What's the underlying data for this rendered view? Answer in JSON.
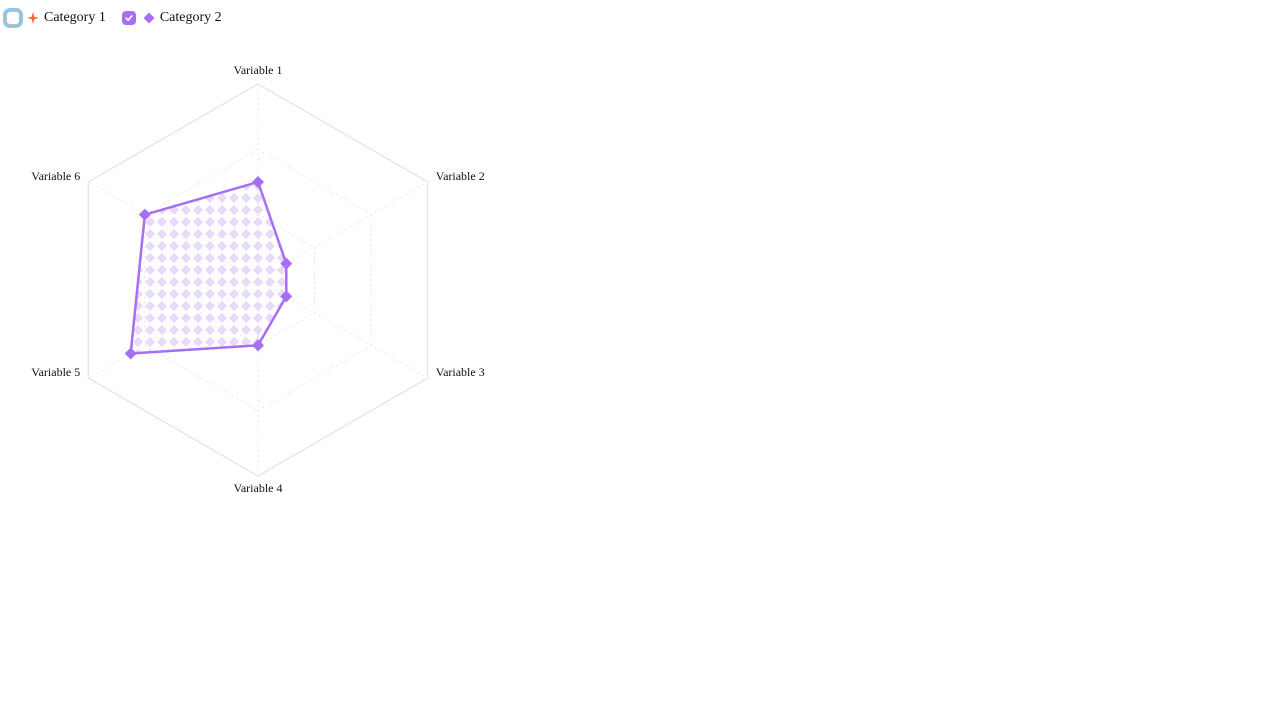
{
  "legend": {
    "items": [
      {
        "label": "Category 1",
        "checked": false,
        "marker_icon": "sparkle-icon",
        "color": "#f06a3c"
      },
      {
        "label": "Category 2",
        "checked": true,
        "marker_icon": "diamond-icon",
        "color": "#a66ef0"
      }
    ]
  },
  "colors": {
    "grid": "#dddddd",
    "grid_dashed": "#e6e6e6",
    "series_line": "#a66ef0",
    "series_fill_pattern": "#e9d9fb",
    "checkbox_focus_ring": "#8ec7ea"
  },
  "chart_data": {
    "type": "radar",
    "axes": [
      "Variable 1",
      "Variable 2",
      "Variable 3",
      "Variable 4",
      "Variable 5",
      "Variable 6"
    ],
    "rlim": [
      0,
      6
    ],
    "grid_levels": 3,
    "grid": true,
    "legend_position": "top-left",
    "series": [
      {
        "name": "Category 1",
        "visible": false,
        "values": []
      },
      {
        "name": "Category 2",
        "visible": true,
        "values": [
          3,
          1,
          1,
          2,
          4.5,
          4
        ]
      }
    ]
  }
}
